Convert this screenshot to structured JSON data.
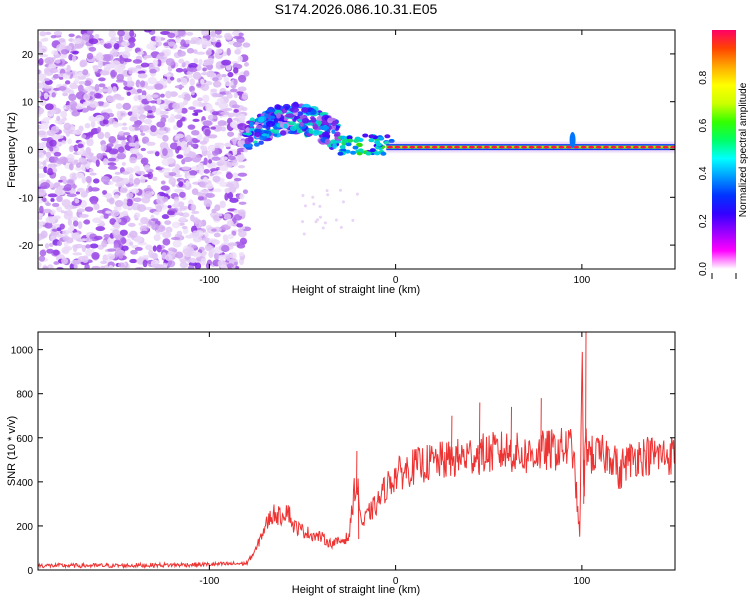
{
  "title": "S174.2026.086.10.31.E05",
  "chart_data": [
    {
      "type": "heatmap",
      "xlabel": "Height of straight line (km)",
      "ylabel": "Frequency (Hz)",
      "xlim": [
        -192,
        150
      ],
      "ylim": [
        -25,
        25
      ],
      "xticks": [
        -100,
        0,
        100
      ],
      "yticks": [
        -20,
        -10,
        0,
        10,
        20
      ],
      "colorbar": {
        "label": "Normalized spectral amplitude",
        "range": [
          0,
          1
        ],
        "ticks": [
          "0.0",
          "0.2",
          "0.4",
          "0.6",
          "0.8"
        ],
        "colormap": [
          "#ffffff",
          "#d9b8f2",
          "#8a2be2",
          "#3300ff",
          "#0060ff",
          "#00c8ff",
          "#00e0a0",
          "#33dd00",
          "#aaff00",
          "#ffff00",
          "#ffaa00",
          "#ff2200",
          "#ff00aa"
        ]
      },
      "regions": [
        {
          "name": "noise",
          "x_range": [
            -192,
            -80
          ],
          "freq_range": [
            -25,
            25
          ],
          "amplitude": 0.15
        },
        {
          "name": "onset",
          "x_range": [
            -80,
            -30
          ],
          "freq_range": [
            -5,
            8
          ],
          "amplitude": 0.4
        },
        {
          "name": "signal-line",
          "x_range": [
            -5,
            150
          ],
          "frequency": 0.5,
          "amplitude": 0.95
        }
      ]
    },
    {
      "type": "line",
      "xlabel": "Height of straight line (km)",
      "ylabel": "SNR (10 * v/v)",
      "xlim": [
        -192,
        150
      ],
      "ylim": [
        0,
        1080
      ],
      "xticks": [
        -100,
        0,
        100
      ],
      "yticks": [
        0,
        200,
        400,
        600,
        800,
        1000
      ],
      "series": [
        {
          "name": "SNR",
          "color": "#ee3333",
          "x": [
            -192,
            -150,
            -100,
            -80,
            -75,
            -72,
            -68,
            -65,
            -62,
            -58,
            -55,
            -50,
            -45,
            -40,
            -35,
            -30,
            -25,
            -22,
            -20,
            -18,
            -15,
            -10,
            -5,
            0,
            10,
            20,
            30,
            40,
            50,
            60,
            70,
            80,
            90,
            95,
            98,
            99,
            100,
            101,
            102,
            105,
            110,
            118,
            120,
            122,
            130,
            140,
            150
          ],
          "values": [
            20,
            20,
            25,
            30,
            90,
            160,
            230,
            260,
            240,
            280,
            200,
            180,
            160,
            150,
            120,
            130,
            150,
            380,
            350,
            200,
            250,
            300,
            380,
            430,
            470,
            490,
            500,
            520,
            530,
            540,
            520,
            540,
            550,
            560,
            250,
            120,
            1080,
            300,
            580,
            520,
            520,
            520,
            400,
            480,
            520,
            520,
            520
          ]
        }
      ]
    }
  ]
}
